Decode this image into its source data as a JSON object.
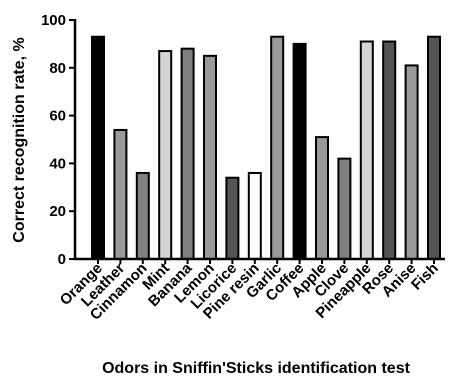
{
  "chart_data": {
    "type": "bar",
    "title": "",
    "xlabel": "Odors in Sniffin'Sticks identification test",
    "ylabel": "Correct recognition rate, %",
    "ylim": [
      0,
      100
    ],
    "yticks": [
      0,
      20,
      40,
      60,
      80,
      100
    ],
    "grid": false,
    "legend": "none",
    "categories": [
      "Orange",
      "Leather",
      "Cinnamon",
      "Mint",
      "Banana",
      "Lemon",
      "Licorice",
      "Pine resin",
      "Garlic",
      "Coffee",
      "Apple",
      "Clove",
      "Pineapple",
      "Rose",
      "Anise",
      "Fish"
    ],
    "values": [
      93,
      54,
      36,
      87,
      88,
      85,
      34,
      36,
      93,
      90,
      51,
      42,
      91,
      91,
      81,
      93
    ],
    "bar_colors": [
      "#000000",
      "#999999",
      "#808080",
      "#d4d4d4",
      "#808080",
      "#999999",
      "#555555",
      "#ffffff",
      "#999999",
      "#000000",
      "#999999",
      "#808080",
      "#d4d4d4",
      "#555555",
      "#999999",
      "#555555"
    ]
  }
}
